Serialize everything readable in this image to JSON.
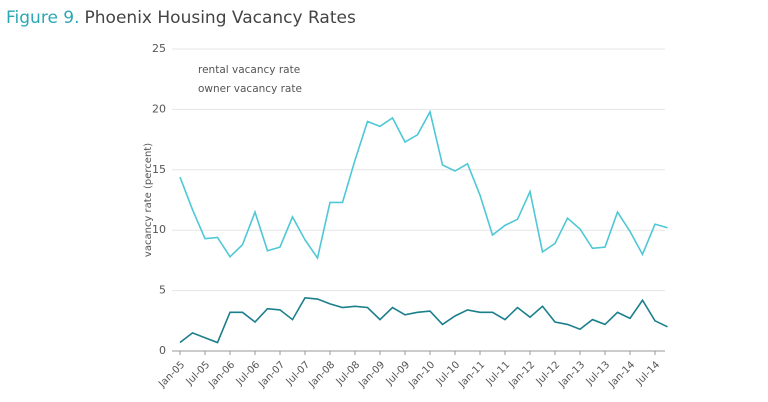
{
  "chart_data": {
    "type": "line",
    "figure_label": "Figure 9.",
    "title": "Phoenix Housing Vacancy Rates",
    "y_label": "vacancy rate (percent)",
    "categories": [
      "Jan-05",
      null,
      "Jul-05",
      null,
      "Jan-06",
      null,
      "Jul-06",
      null,
      "Jan-07",
      null,
      "Jul-07",
      null,
      "Jan-08",
      null,
      "Jul-08",
      null,
      "Jan-09",
      null,
      "Jul-09",
      null,
      "Jan-10",
      null,
      "Jul-10",
      null,
      "Jan-11",
      null,
      "Jul-11",
      null,
      "Jan-12",
      null,
      "Jul-12",
      null,
      "Jan-13",
      null,
      "Jul-13",
      null,
      "Jan-14",
      null,
      "Jul-14",
      null
    ],
    "series": [
      {
        "name": "rental vacancy rate",
        "color": "#4fc8d6",
        "values": [
          14.4,
          11.7,
          9.3,
          9.4,
          7.8,
          8.8,
          11.5,
          8.3,
          8.6,
          11.1,
          9.2,
          7.7,
          12.3,
          12.3,
          15.8,
          19.0,
          18.6,
          19.3,
          17.3,
          17.9,
          19.8,
          15.4,
          14.9,
          15.5,
          12.9,
          9.6,
          10.4,
          10.9,
          13.2,
          8.2,
          8.9,
          11.0,
          10.1,
          8.5,
          8.6,
          11.5,
          9.9,
          8.0,
          10.5,
          10.2
        ]
      },
      {
        "name": "owner vacancy rate",
        "color": "#1c7f8c",
        "values": [
          0.7,
          1.5,
          1.1,
          0.7,
          3.2,
          3.2,
          2.4,
          3.5,
          3.4,
          2.6,
          4.4,
          4.3,
          3.9,
          3.6,
          3.7,
          3.6,
          2.6,
          3.6,
          3.0,
          3.2,
          3.3,
          2.2,
          2.9,
          3.4,
          3.2,
          3.2,
          2.6,
          3.6,
          2.8,
          3.7,
          2.4,
          2.2,
          1.8,
          2.6,
          2.2,
          3.2,
          2.7,
          4.2,
          2.5,
          2.0
        ]
      }
    ],
    "ylim": [
      0,
      25
    ],
    "yticks": [
      0,
      5,
      10,
      15,
      20,
      25
    ],
    "grid": true
  }
}
